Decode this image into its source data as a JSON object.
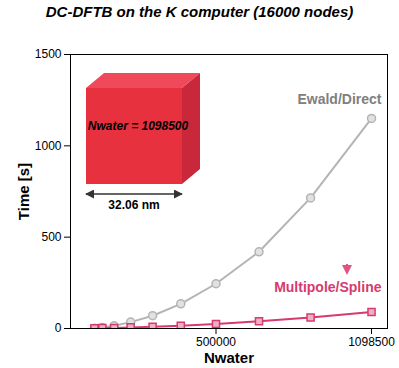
{
  "chart_data": {
    "type": "line",
    "title": "DC-DFTB on the K computer (16000 nodes)",
    "x_label": "Nwater",
    "y_label": "Time [s]",
    "x": [
      32000,
      62500,
      108000,
      171500,
      256000,
      364500,
      500000,
      665500,
      864000,
      1098500
    ],
    "series": [
      {
        "name": "Ewald/Direct",
        "color": "#b4b4b4",
        "marker": "circle",
        "values": [
          2,
          5,
          15,
          35,
          70,
          135,
          245,
          420,
          715,
          1150
        ]
      },
      {
        "name": "Multipole/Spline",
        "color": "#d63a6e",
        "marker": "square",
        "values": [
          1,
          2,
          3,
          6,
          10,
          15,
          25,
          40,
          60,
          90
        ]
      }
    ],
    "xlim": [
      -60000,
      1160000
    ],
    "xticks": [
      500000,
      1098500
    ],
    "ylim": [
      0,
      1500
    ],
    "yticks": [
      0,
      500,
      1000,
      1500
    ],
    "annotations": [
      "Nwater = 1098500",
      "32.06 nm"
    ]
  }
}
